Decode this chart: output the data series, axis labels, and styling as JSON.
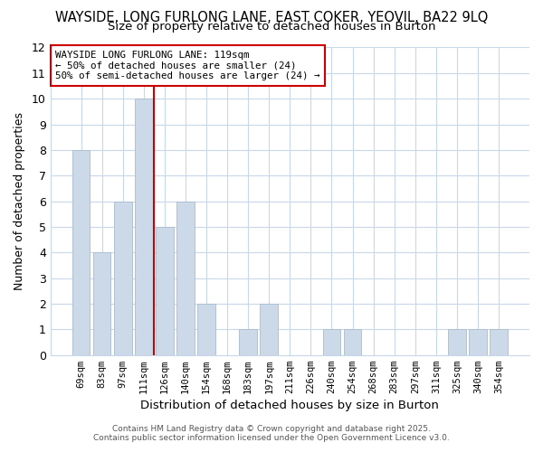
{
  "title1": "WAYSIDE, LONG FURLONG LANE, EAST COKER, YEOVIL, BA22 9LQ",
  "title2": "Size of property relative to detached houses in Burton",
  "xlabel": "Distribution of detached houses by size in Burton",
  "ylabel": "Number of detached properties",
  "bins": [
    "69sqm",
    "83sqm",
    "97sqm",
    "111sqm",
    "126sqm",
    "140sqm",
    "154sqm",
    "168sqm",
    "183sqm",
    "197sqm",
    "211sqm",
    "226sqm",
    "240sqm",
    "254sqm",
    "268sqm",
    "283sqm",
    "297sqm",
    "311sqm",
    "325sqm",
    "340sqm",
    "354sqm"
  ],
  "values": [
    8,
    4,
    6,
    10,
    5,
    6,
    2,
    0,
    1,
    2,
    0,
    0,
    1,
    1,
    0,
    0,
    0,
    0,
    1,
    1,
    1
  ],
  "bar_color": "#ccd9e8",
  "bar_edgecolor": "#aabccc",
  "vline_color": "#cc0000",
  "vline_pos": 3.5,
  "ylim": [
    0,
    12
  ],
  "yticks": [
    0,
    1,
    2,
    3,
    4,
    5,
    6,
    7,
    8,
    9,
    10,
    11,
    12
  ],
  "annotation_text": "WAYSIDE LONG FURLONG LANE: 119sqm\n← 50% of detached houses are smaller (24)\n50% of semi-detached houses are larger (24) →",
  "footer1": "Contains HM Land Registry data © Crown copyright and database right 2025.",
  "footer2": "Contains public sector information licensed under the Open Government Licence v3.0.",
  "bg_color": "#ffffff",
  "grid_color": "#c8d8e8",
  "title_fontsize": 10.5,
  "subtitle_fontsize": 9.5
}
